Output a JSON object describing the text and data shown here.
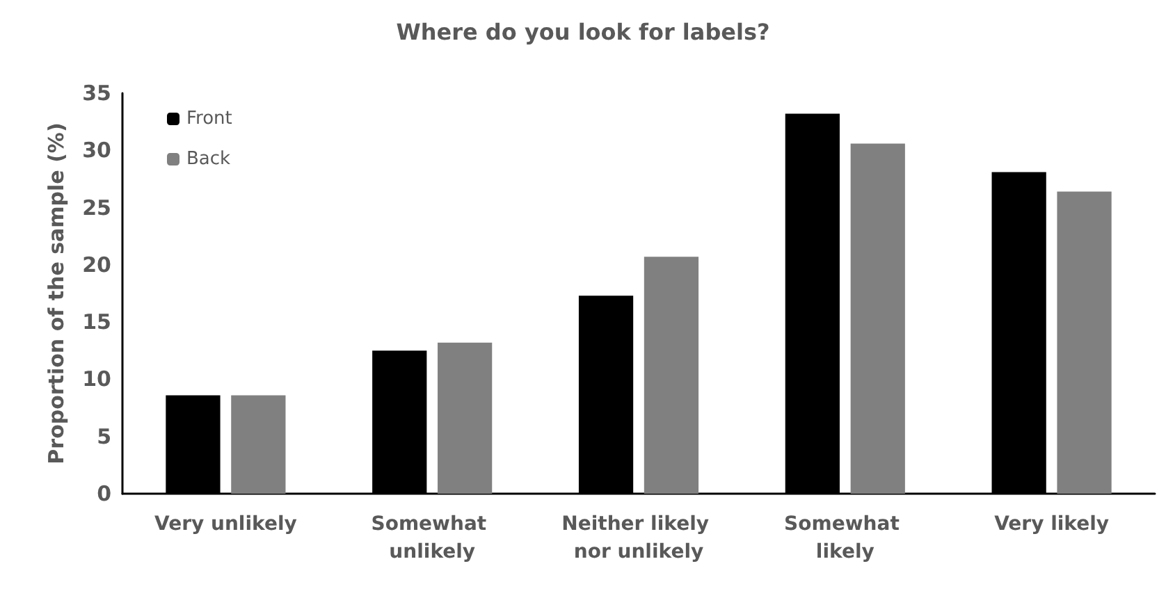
{
  "chart_data": {
    "type": "bar",
    "title": "Where do you look for labels?",
    "ylabel": "Proportion of the sample (%)",
    "categories": [
      "Very unlikely",
      "Somewhat unlikely",
      "Neither likely nor unlikely",
      "Somewhat likely",
      "Very likely"
    ],
    "series": [
      {
        "name": "Front",
        "color": "#000000",
        "values": [
          8.6,
          12.5,
          17.3,
          33.2,
          28.1
        ]
      },
      {
        "name": "Back",
        "color": "#808080",
        "values": [
          8.6,
          13.2,
          20.7,
          30.6,
          26.4
        ]
      }
    ],
    "ylim": [
      0,
      35
    ],
    "yticks": [
      0,
      5,
      10,
      15,
      20,
      25,
      30,
      35
    ],
    "grid": false,
    "legend": "top left"
  }
}
